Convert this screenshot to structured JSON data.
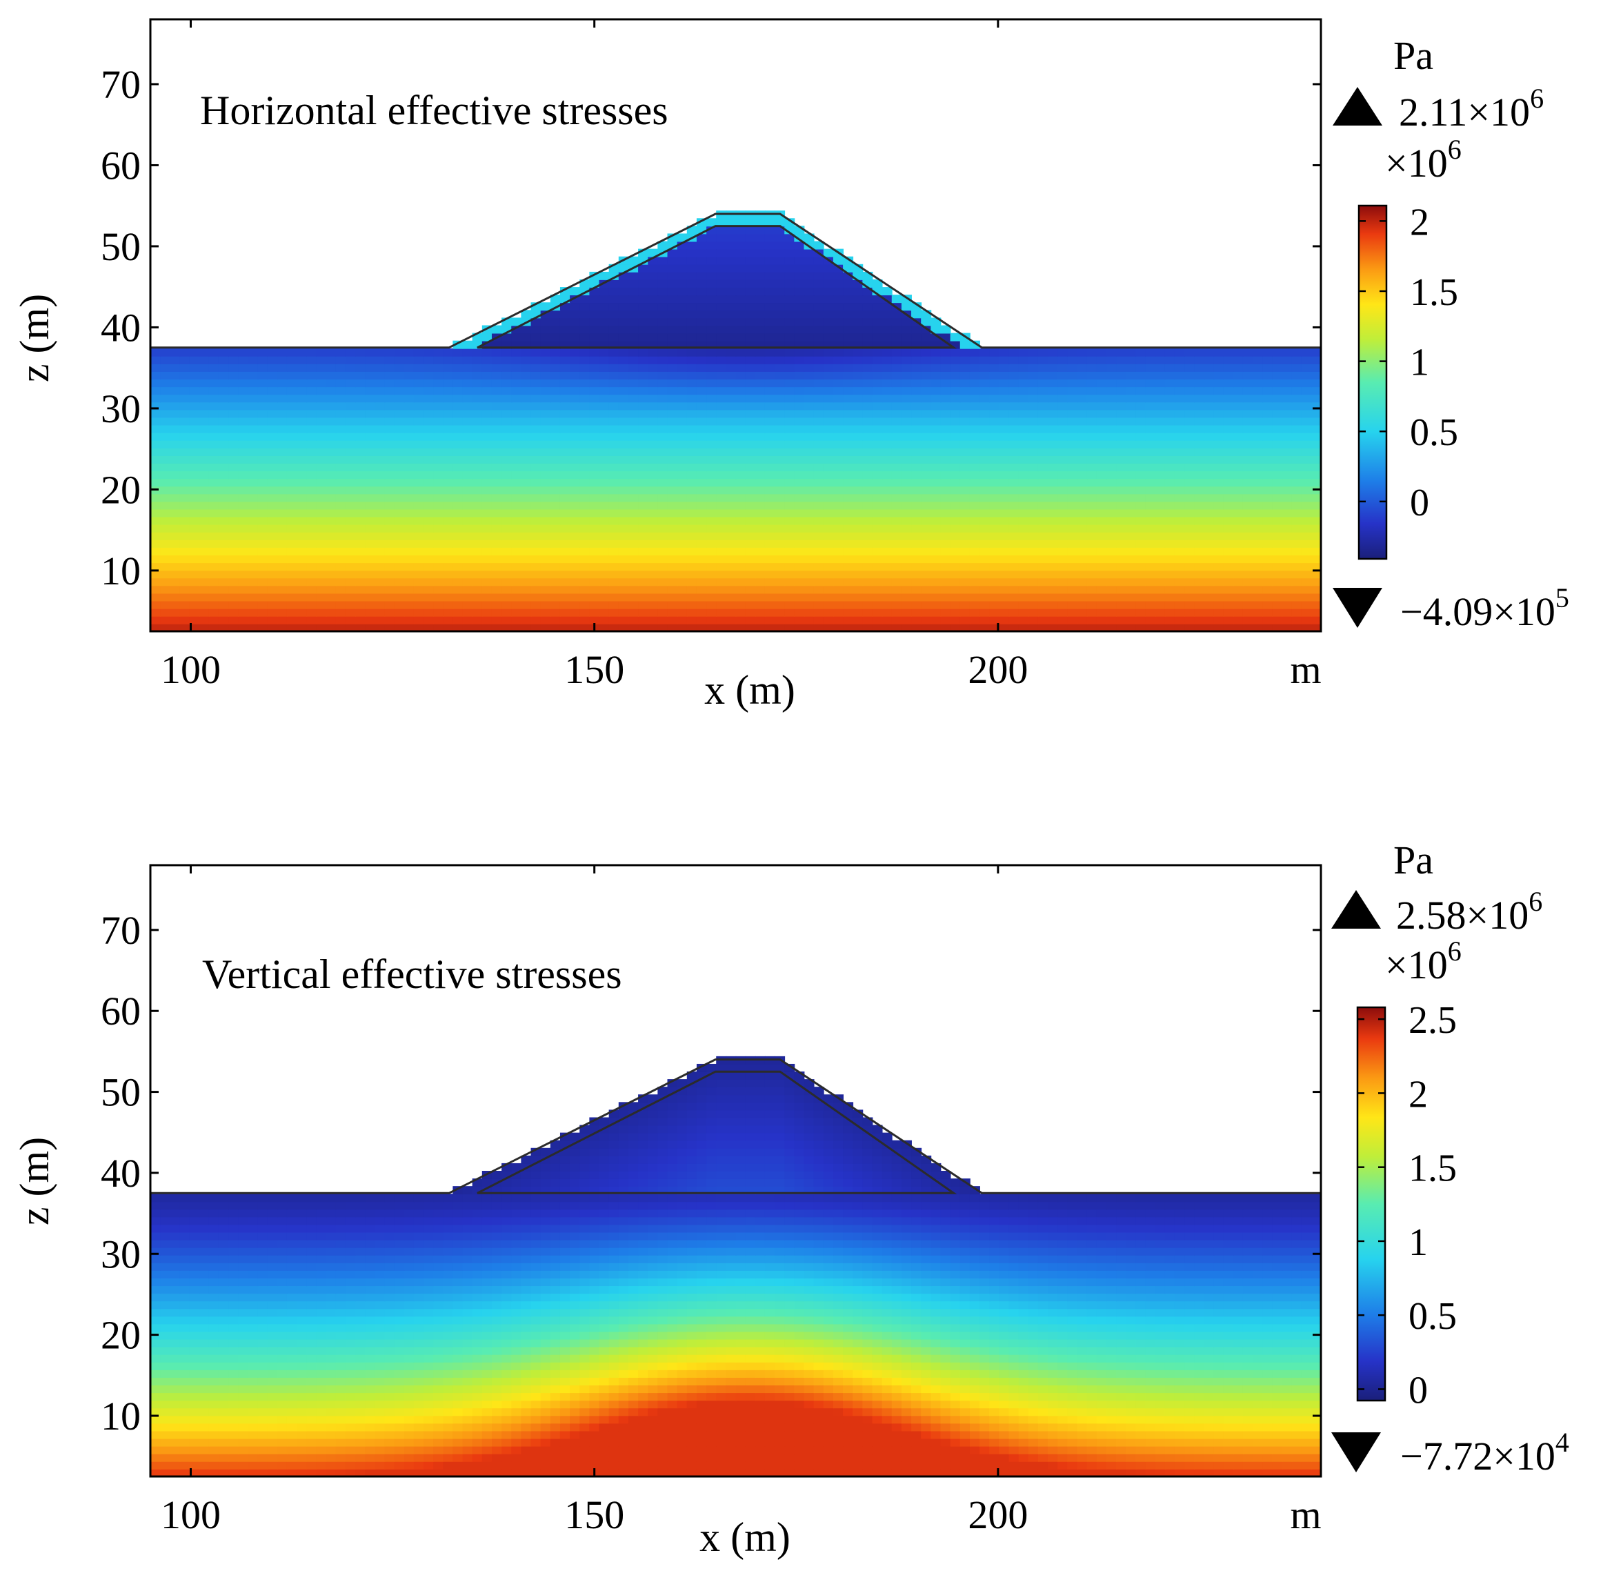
{
  "chart_data": [
    {
      "type": "heatmap",
      "title": "Horizontal effective stresses",
      "xlabel": "x (m)",
      "ylabel": "z (m)",
      "x_unit": "m",
      "xlim": [
        95,
        240
      ],
      "ylim": [
        2.5,
        78
      ],
      "xticks": [
        100,
        150,
        200
      ],
      "yticks": [
        10,
        20,
        30,
        40,
        50,
        60,
        70
      ],
      "ground_level": 37.5,
      "embankment": {
        "outer": [
          [
            132,
            37.5
          ],
          [
            165,
            54
          ],
          [
            173,
            54
          ],
          [
            198,
            37.5
          ]
        ],
        "inner": [
          [
            135.5,
            37.5
          ],
          [
            165,
            52.5
          ],
          [
            173,
            52.5
          ],
          [
            194.5,
            37.5
          ]
        ]
      },
      "field_pattern": "layered",
      "colorbar": {
        "unit": "Pa",
        "multiplier": "×10",
        "multiplier_exp": "6",
        "max_label": "2.11×10",
        "max_exp": "6",
        "min_label": "−4.09×10",
        "min_exp": "5",
        "max_value": 2110000,
        "min_value": -409000,
        "ticks": [
          0,
          0.5,
          1,
          1.5,
          2
        ],
        "tick_labels": [
          "0",
          "0.5",
          "1",
          "1.5",
          "2"
        ]
      }
    },
    {
      "type": "heatmap",
      "title": "Vertical effective stresses",
      "xlabel": "x (m)",
      "ylabel": "z (m)",
      "x_unit": "m",
      "xlim": [
        95,
        240
      ],
      "ylim": [
        2.5,
        78
      ],
      "xticks": [
        100,
        150,
        200
      ],
      "yticks": [
        10,
        20,
        30,
        40,
        50,
        60,
        70
      ],
      "ground_level": 37.5,
      "embankment": {
        "outer": [
          [
            132,
            37.5
          ],
          [
            165,
            54
          ],
          [
            173,
            54
          ],
          [
            198,
            37.5
          ]
        ],
        "inner": [
          [
            135.5,
            37.5
          ],
          [
            165,
            52.5
          ],
          [
            173,
            52.5
          ],
          [
            194.5,
            37.5
          ]
        ]
      },
      "field_pattern": "bulb",
      "colorbar": {
        "unit": "Pa",
        "multiplier": "×10",
        "multiplier_exp": "6",
        "max_label": "2.58×10",
        "max_exp": "6",
        "min_label": "−7.72×10",
        "min_exp": "4",
        "max_value": 2580000,
        "min_value": -77200,
        "ticks": [
          0,
          0.5,
          1,
          1.5,
          2,
          2.5
        ],
        "tick_labels": [
          "0",
          "0.5",
          "1",
          "1.5",
          "2",
          "2.5"
        ]
      }
    }
  ]
}
